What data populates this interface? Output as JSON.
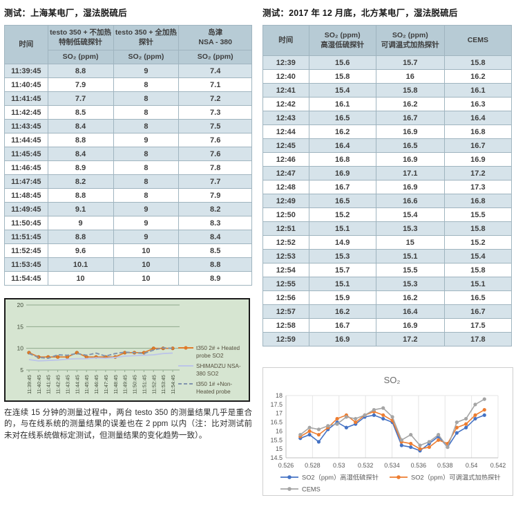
{
  "left": {
    "title": "测试：上海某电厂，湿法脱硫后",
    "table": {
      "headers": {
        "time": "时间",
        "col2": "testo 350 + 不加热\n特制低硫探针",
        "col3": "testo 350 + 全加热\n探针",
        "col4": "岛津\nNSA - 380",
        "sub": "SO₂ (ppm)"
      },
      "rows": [
        [
          "11:39:45",
          "8.8",
          "9",
          "7.4"
        ],
        [
          "11:40:45",
          "7.9",
          "8",
          "7.1"
        ],
        [
          "11:41:45",
          "7.7",
          "8",
          "7.2"
        ],
        [
          "11:42:45",
          "8.5",
          "8",
          "7.3"
        ],
        [
          "11:43:45",
          "8.4",
          "8",
          "7.5"
        ],
        [
          "11:44:45",
          "8.8",
          "9",
          "7.6"
        ],
        [
          "11:45:45",
          "8.4",
          "8",
          "7.6"
        ],
        [
          "11:46:45",
          "8.9",
          "8",
          "7.8"
        ],
        [
          "11:47:45",
          "8.2",
          "8",
          "7.7"
        ],
        [
          "11:48:45",
          "8.8",
          "8",
          "7.9"
        ],
        [
          "11:49:45",
          "9.1",
          "9",
          "8.2"
        ],
        [
          "11:50:45",
          "9",
          "9",
          "8.3"
        ],
        [
          "11:51:45",
          "8.8",
          "9",
          "8.4"
        ],
        [
          "11:52:45",
          "9.6",
          "10",
          "8.5"
        ],
        [
          "11:53:45",
          "10.1",
          "10",
          "8.8"
        ],
        [
          "11:54:45",
          "10",
          "10",
          "8.9"
        ]
      ]
    },
    "caption": "在连续 15 分钟的测量过程中，两台 testo 350 的测量结果几乎是重合的，与在线系统的测量结果的误差也在 2 ppm 以内（注：比对测试前未对在线系统做标定测试，但测量结果的变化趋势一致）。"
  },
  "right": {
    "title": "测试：2017 年 12 月底，北方某电厂，湿法脱硫后",
    "table": {
      "headers": {
        "time": "时间",
        "col2": "SO₂ (ppm)\n高湿低硫探针",
        "col3": "SO₂ (ppm)\n可调温式加热探针",
        "col4": "CEMS"
      },
      "rows": [
        [
          "12:39",
          "15.6",
          "15.7",
          "15.8"
        ],
        [
          "12:40",
          "15.8",
          "16",
          "16.2"
        ],
        [
          "12:41",
          "15.4",
          "15.8",
          "16.1"
        ],
        [
          "12:42",
          "16.1",
          "16.2",
          "16.3"
        ],
        [
          "12:43",
          "16.5",
          "16.7",
          "16.4"
        ],
        [
          "12:44",
          "16.2",
          "16.9",
          "16.8"
        ],
        [
          "12:45",
          "16.4",
          "16.5",
          "16.7"
        ],
        [
          "12:46",
          "16.8",
          "16.9",
          "16.9"
        ],
        [
          "12:47",
          "16.9",
          "17.1",
          "17.2"
        ],
        [
          "12:48",
          "16.7",
          "16.9",
          "17.3"
        ],
        [
          "12:49",
          "16.5",
          "16.6",
          "16.8"
        ],
        [
          "12:50",
          "15.2",
          "15.4",
          "15.5"
        ],
        [
          "12:51",
          "15.1",
          "15.3",
          "15.8"
        ],
        [
          "12:52",
          "14.9",
          "15",
          "15.2"
        ],
        [
          "12:53",
          "15.3",
          "15.1",
          "15.4"
        ],
        [
          "12:54",
          "15.7",
          "15.5",
          "15.8"
        ],
        [
          "12:55",
          "15.1",
          "15.3",
          "15.1"
        ],
        [
          "12:56",
          "15.9",
          "16.2",
          "16.5"
        ],
        [
          "12:57",
          "16.2",
          "16.4",
          "16.7"
        ],
        [
          "12:58",
          "16.7",
          "16.9",
          "17.5"
        ],
        [
          "12:59",
          "16.9",
          "17.2",
          "17.8"
        ]
      ]
    }
  },
  "chart_data": [
    {
      "type": "line",
      "title": "",
      "categories": [
        "11:39:45",
        "11:40:45",
        "11:41:45",
        "11:42:45",
        "11:43:45",
        "11:44:45",
        "11:45:45",
        "11:46:45",
        "11:47:45",
        "11:48:45",
        "11:49:45",
        "11:50:45",
        "11:51:45",
        "11:52:45",
        "11:53:45",
        "11:54:45"
      ],
      "series": [
        {
          "name": "t350 2# + Heated probe SO2",
          "legend_lines": [
            "t350 2# + Heated",
            "probe SO2"
          ],
          "color": "#e07b2a",
          "marker": "circle",
          "dash": false,
          "values": [
            9,
            8,
            8,
            8,
            8,
            9,
            8,
            8,
            8,
            8,
            9,
            9,
            9,
            10,
            10,
            10
          ]
        },
        {
          "name": "SHIMADZU NSA-380 SO2",
          "legend_lines": [
            "SHIMADZU NSA-",
            "380 SO2"
          ],
          "color": "#bcc5e8",
          "marker": "none",
          "dash": false,
          "values": [
            7.4,
            7.1,
            7.2,
            7.3,
            7.5,
            7.6,
            7.6,
            7.8,
            7.7,
            7.9,
            8.2,
            8.3,
            8.4,
            8.5,
            8.8,
            8.9
          ]
        },
        {
          "name": "t350 1# +Non-Heated probe",
          "legend_lines": [
            "t350 1# +Non-",
            "Heated probe"
          ],
          "color": "#8094ae",
          "marker": "none",
          "dash": true,
          "values": [
            8.8,
            7.9,
            7.7,
            8.5,
            8.4,
            8.8,
            8.4,
            8.9,
            8.2,
            8.8,
            9.1,
            9,
            8.8,
            9.6,
            10.1,
            10
          ]
        }
      ],
      "ylim": [
        5,
        20
      ],
      "yticks": [
        "5",
        "10",
        "15",
        "20"
      ],
      "background": "#d6e5d1",
      "legend_position": "right",
      "grid": "horizontal"
    },
    {
      "type": "line",
      "title": "SO₂",
      "x": [
        0.527083,
        0.527778,
        0.528472,
        0.529167,
        0.529861,
        0.530556,
        0.53125,
        0.531944,
        0.532639,
        0.533333,
        0.534028,
        0.534722,
        0.535417,
        0.536111,
        0.536806,
        0.5375,
        0.538194,
        0.538889,
        0.539583,
        0.540278,
        0.540972
      ],
      "xlim": [
        0.526,
        0.542
      ],
      "xticks": [
        "0.526",
        "0.528",
        "0.53",
        "0.532",
        "0.534",
        "0.536",
        "0.538",
        "0.54",
        "0.542"
      ],
      "series": [
        {
          "name": "SO2（ppm）高湿低硫探针",
          "color": "#4472c4",
          "values": [
            15.6,
            15.8,
            15.4,
            16.1,
            16.5,
            16.2,
            16.4,
            16.8,
            16.9,
            16.7,
            16.5,
            15.2,
            15.1,
            14.9,
            15.3,
            15.7,
            15.1,
            15.9,
            16.2,
            16.7,
            16.9
          ]
        },
        {
          "name": "SO2（ppm）可调温式加热探针",
          "color": "#ed7d31",
          "values": [
            15.7,
            16,
            15.8,
            16.2,
            16.7,
            16.9,
            16.5,
            16.9,
            17.1,
            16.9,
            16.6,
            15.4,
            15.3,
            15,
            15.1,
            15.5,
            15.3,
            16.2,
            16.4,
            16.9,
            17.2
          ]
        },
        {
          "name": "CEMS",
          "color": "#a5a5a5",
          "values": [
            15.8,
            16.2,
            16.1,
            16.3,
            16.4,
            16.8,
            16.7,
            16.9,
            17.2,
            17.3,
            16.8,
            15.5,
            15.8,
            15.2,
            15.4,
            15.8,
            15.1,
            16.5,
            16.7,
            17.5,
            17.8
          ]
        }
      ],
      "ylim": [
        14.5,
        18
      ],
      "yticks": [
        "14.5",
        "15",
        "15.5",
        "16",
        "16.5",
        "17",
        "17.5",
        "18"
      ],
      "background": "#ffffff",
      "legend_position": "bottom",
      "grid": "vertical"
    }
  ]
}
